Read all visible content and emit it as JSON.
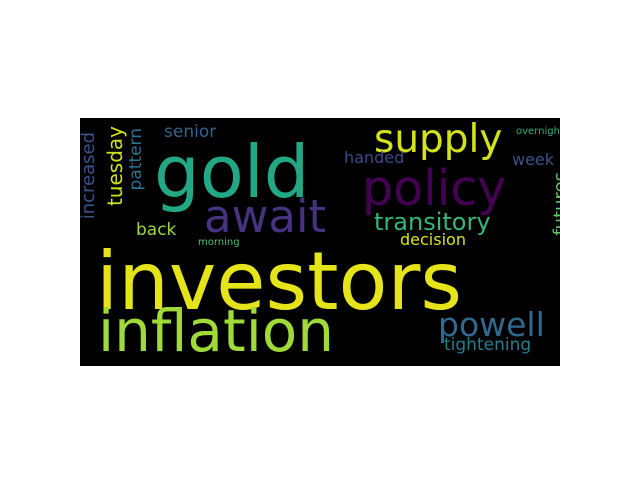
{
  "words": {
    "investors": {
      "text": "investors",
      "color": "#e4e419"
    },
    "gold": {
      "text": "gold",
      "color": "#22a884"
    },
    "inflation": {
      "text": "inflation",
      "color": "#a0da39"
    },
    "await": {
      "text": "await",
      "color": "#46327e"
    },
    "policy": {
      "text": "policy",
      "color": "#440154"
    },
    "supply": {
      "text": "supply",
      "color": "#d2e21b"
    },
    "powell": {
      "text": "powell",
      "color": "#31688e"
    },
    "transitory": {
      "text": "transitory",
      "color": "#35b779"
    },
    "tightening": {
      "text": "tightening",
      "color": "#277f8e"
    },
    "decision": {
      "text": "decision",
      "color": "#d8e219"
    },
    "handed": {
      "text": "handed",
      "color": "#3e4a89"
    },
    "week": {
      "text": "week",
      "color": "#3b528b"
    },
    "senior": {
      "text": "senior",
      "color": "#33638d"
    },
    "back": {
      "text": "back",
      "color": "#9bd93c"
    },
    "tuesday": {
      "text": "tuesday",
      "color": "#d0e11c"
    },
    "pattern": {
      "text": "pattern",
      "color": "#2c728e"
    },
    "increased": {
      "text": "increased",
      "color": "#3b528b"
    },
    "futures": {
      "text": "futures",
      "color": "#5ec962"
    },
    "morning": {
      "text": "morning",
      "color": "#4ac16d"
    },
    "overnight": {
      "text": "overnight",
      "color": "#2fb47c"
    }
  }
}
